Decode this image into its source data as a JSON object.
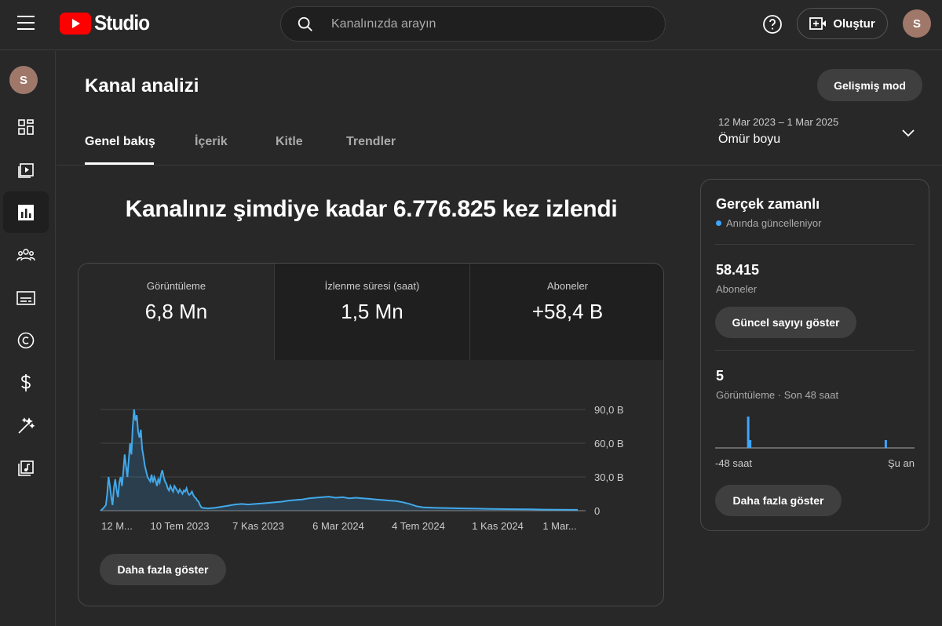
{
  "header": {
    "logo_text": "Studio",
    "search_placeholder": "Kanalınızda arayın",
    "create_label": "Oluştur",
    "avatar_letter": "S"
  },
  "sidebar": {
    "avatar_letter": "S",
    "items": [
      {
        "icon": "dashboard-icon"
      },
      {
        "icon": "content-icon"
      },
      {
        "icon": "analytics-icon",
        "active": true
      },
      {
        "icon": "community-icon"
      },
      {
        "icon": "subtitles-icon"
      },
      {
        "icon": "copyright-icon"
      },
      {
        "icon": "earn-icon"
      },
      {
        "icon": "customization-icon"
      },
      {
        "icon": "audio-library-icon"
      }
    ]
  },
  "page": {
    "title": "Kanal analizi",
    "advanced_mode_label": "Gelişmiş mod",
    "tabs": [
      {
        "label": "Genel bakış",
        "active": true
      },
      {
        "label": "İçerik"
      },
      {
        "label": "Kitle"
      },
      {
        "label": "Trendler"
      }
    ],
    "date_range": "12 Mar 2023 – 1 Mar 2025",
    "period": "Ömür boyu",
    "headline": "Kanalınız şimdiye kadar 6.776.825 kez izlendi"
  },
  "metrics": [
    {
      "label": "Görüntüleme",
      "value": "6,8 Mn"
    },
    {
      "label": "İzlenme süresi (saat)",
      "value": "1,5 Mn"
    },
    {
      "label": "Aboneler",
      "value": "+58,4 B"
    }
  ],
  "chart_data": {
    "type": "area",
    "x_tick_labels": [
      "12 M...",
      "10 Tem 2023",
      "7 Kas 2023",
      "6 Mar 2024",
      "4 Tem 2024",
      "1 Kas 2024",
      "1 Mar..."
    ],
    "y_tick_labels": [
      "90,0 B",
      "60,0 B",
      "30,0 B",
      "0"
    ],
    "ylim": [
      0,
      90000
    ],
    "points": [
      [
        0,
        0
      ],
      [
        2,
        2000
      ],
      [
        4,
        5000
      ],
      [
        5,
        15000
      ],
      [
        6,
        30000
      ],
      [
        7,
        22000
      ],
      [
        8,
        12000
      ],
      [
        9,
        5000
      ],
      [
        10,
        20000
      ],
      [
        11,
        28000
      ],
      [
        12,
        18000
      ],
      [
        13,
        12000
      ],
      [
        14,
        25000
      ],
      [
        15,
        30000
      ],
      [
        16,
        22000
      ],
      [
        17,
        35000
      ],
      [
        18,
        50000
      ],
      [
        19,
        40000
      ],
      [
        20,
        30000
      ],
      [
        21,
        45000
      ],
      [
        22,
        60000
      ],
      [
        23,
        50000
      ],
      [
        24,
        75000
      ],
      [
        25,
        90000
      ],
      [
        26,
        80000
      ],
      [
        27,
        85000
      ],
      [
        28,
        70000
      ],
      [
        29,
        65000
      ],
      [
        30,
        72000
      ],
      [
        31,
        55000
      ],
      [
        32,
        48000
      ],
      [
        33,
        40000
      ],
      [
        34,
        35000
      ],
      [
        35,
        30000
      ],
      [
        36,
        28000
      ],
      [
        37,
        26000
      ],
      [
        38,
        32000
      ],
      [
        39,
        25000
      ],
      [
        40,
        30000
      ],
      [
        41,
        27000
      ],
      [
        42,
        22000
      ],
      [
        43,
        28000
      ],
      [
        44,
        25000
      ],
      [
        45,
        32000
      ],
      [
        46,
        36000
      ],
      [
        47,
        30000
      ],
      [
        48,
        26000
      ],
      [
        49,
        24000
      ],
      [
        50,
        20000
      ],
      [
        51,
        18000
      ],
      [
        52,
        22000
      ],
      [
        53,
        19000
      ],
      [
        54,
        17000
      ],
      [
        55,
        22000
      ],
      [
        56,
        20000
      ],
      [
        57,
        18000
      ],
      [
        58,
        16000
      ],
      [
        59,
        19000
      ],
      [
        60,
        17000
      ],
      [
        61,
        15000
      ],
      [
        62,
        18000
      ],
      [
        63,
        17000
      ],
      [
        64,
        20000
      ],
      [
        65,
        16000
      ],
      [
        66,
        14000
      ],
      [
        67,
        15000
      ],
      [
        68,
        17000
      ],
      [
        69,
        14000
      ],
      [
        70,
        12000
      ],
      [
        71,
        11000
      ],
      [
        72,
        9000
      ],
      [
        73,
        8000
      ],
      [
        74,
        5000
      ],
      [
        75,
        3000
      ],
      [
        76,
        2500
      ],
      [
        80,
        2000
      ],
      [
        85,
        2500
      ],
      [
        90,
        3500
      ],
      [
        95,
        4500
      ],
      [
        100,
        5500
      ],
      [
        105,
        6000
      ],
      [
        110,
        5500
      ],
      [
        115,
        6000
      ],
      [
        120,
        6500
      ],
      [
        125,
        7000
      ],
      [
        130,
        7500
      ],
      [
        135,
        8000
      ],
      [
        140,
        9000
      ],
      [
        145,
        9500
      ],
      [
        150,
        10000
      ],
      [
        155,
        11000
      ],
      [
        160,
        11500
      ],
      [
        165,
        12000
      ],
      [
        170,
        12500
      ],
      [
        175,
        11500
      ],
      [
        180,
        12000
      ],
      [
        185,
        11000
      ],
      [
        190,
        11500
      ],
      [
        195,
        11000
      ],
      [
        200,
        10500
      ],
      [
        205,
        10000
      ],
      [
        210,
        9500
      ],
      [
        215,
        9000
      ],
      [
        220,
        8500
      ],
      [
        225,
        7500
      ],
      [
        230,
        6000
      ],
      [
        235,
        4000
      ],
      [
        240,
        3000
      ],
      [
        250,
        2500
      ],
      [
        260,
        2200
      ],
      [
        270,
        2000
      ],
      [
        280,
        1800
      ],
      [
        290,
        1500
      ],
      [
        300,
        1400
      ],
      [
        310,
        1300
      ],
      [
        320,
        1200
      ],
      [
        330,
        1000
      ],
      [
        340,
        900
      ],
      [
        350,
        800
      ],
      [
        355,
        800
      ]
    ]
  },
  "chart_more_label": "Daha fazla göster",
  "realtime": {
    "title": "Gerçek zamanlı",
    "subtitle": "Anında güncelleniyor",
    "subscribers_value": "58.415",
    "subscribers_label": "Aboneler",
    "current_count_label": "Güncel sayıyı göster",
    "views_value": "5",
    "views_label": "Görüntüleme · Son 48 saat",
    "axis_start": "-48 saat",
    "axis_end": "Şu an",
    "bars": [
      [
        16,
        4
      ],
      [
        17,
        1
      ],
      [
        85,
        1
      ]
    ],
    "more_label": "Daha fazla göster"
  }
}
